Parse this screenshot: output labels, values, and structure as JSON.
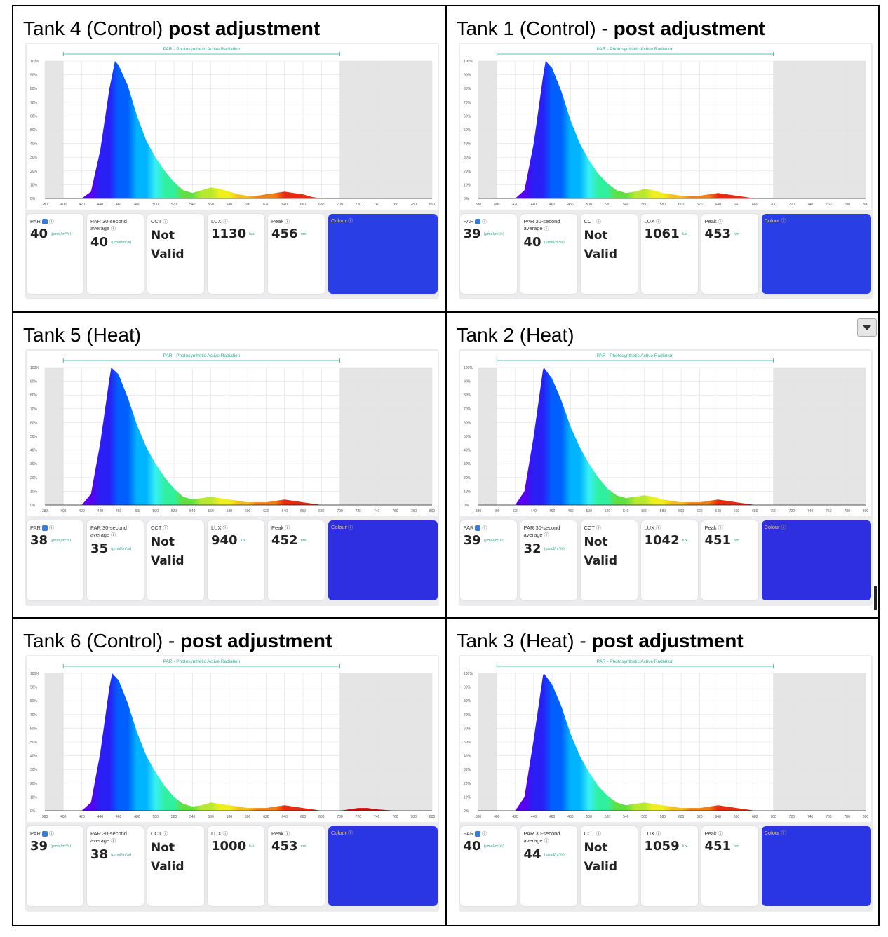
{
  "panels": [
    {
      "title_main": "Tank 4 (Control) ",
      "title_bold": "post adjustment",
      "readings": {
        "par": "40",
        "par_avg": "40",
        "cct_line1": "Not",
        "cct_line2": "Valid",
        "lux": "1130",
        "peak": "456"
      },
      "colour": "#2a3ee6"
    },
    {
      "title_main": "Tank 1 (Control) - ",
      "title_bold": "post adjustment",
      "readings": {
        "par": "39",
        "par_avg": "40",
        "cct_line1": "Not",
        "cct_line2": "Valid",
        "lux": "1061",
        "peak": "453"
      },
      "colour": "#2a3ee6"
    },
    {
      "title_main": "Tank 5 (Heat)",
      "title_bold": "",
      "readings": {
        "par": "38",
        "par_avg": "35",
        "cct_line1": "Not",
        "cct_line2": "Valid",
        "lux": "940",
        "peak": "452"
      },
      "colour": "#2e2fe0"
    },
    {
      "title_main": "Tank 2 (Heat)",
      "title_bold": "",
      "readings": {
        "par": "39",
        "par_avg": "32",
        "cct_line1": "Not",
        "cct_line2": "Valid",
        "lux": "1042",
        "peak": "451"
      },
      "colour": "#2e2fe0"
    },
    {
      "title_main": "Tank 6 (Control) - ",
      "title_bold": "post adjustment",
      "readings": {
        "par": "39",
        "par_avg": "38",
        "cct_line1": "Not",
        "cct_line2": "Valid",
        "lux": "1000",
        "peak": "453"
      },
      "colour": "#2a35e4"
    },
    {
      "title_main": "Tank 3 (Heat) - ",
      "title_bold": "post adjustment",
      "readings": {
        "par": "40",
        "par_avg": "44",
        "cct_line1": "Not",
        "cct_line2": "Valid",
        "lux": "1059",
        "peak": "451"
      },
      "colour": "#2a35e4"
    }
  ],
  "labels": {
    "par": "PAR",
    "par_avg": "PAR 30-second average",
    "cct": "CCT",
    "lux": "LUX",
    "peak": "Peak",
    "colour": "Colour",
    "par_unit": "(µmol/m²/s)",
    "lux_unit": "lux",
    "peak_unit": "nm"
  },
  "chart_data": [
    {
      "type": "area",
      "title": "PAR - Photosynthetic Active Radiation",
      "x": [
        380,
        420,
        430,
        440,
        450,
        456,
        460,
        470,
        480,
        490,
        500,
        510,
        520,
        530,
        540,
        550,
        560,
        570,
        580,
        590,
        600,
        610,
        620,
        630,
        640,
        650,
        660,
        670,
        680,
        690,
        700,
        720,
        740,
        760,
        780,
        800
      ],
      "y": [
        0,
        0,
        5,
        35,
        80,
        100,
        97,
        82,
        60,
        42,
        30,
        20,
        12,
        6,
        4,
        6,
        8,
        7,
        5,
        3,
        2,
        2,
        3,
        4,
        5,
        4,
        3,
        1,
        0,
        0,
        0,
        0,
        0,
        0,
        0,
        0
      ],
      "xlim": [
        380,
        800
      ],
      "ylim": [
        0,
        100
      ],
      "par_range": [
        400,
        700
      ],
      "xticks": [
        "380",
        "400",
        "420",
        "440",
        "460",
        "480",
        "500",
        "520",
        "540",
        "560",
        "580",
        "600",
        "620",
        "640",
        "660",
        "680",
        "700",
        "720",
        "740",
        "760",
        "780",
        "800"
      ],
      "yticks": [
        "0%",
        "10%",
        "20%",
        "30%",
        "40%",
        "50%",
        "60%",
        "70%",
        "80%",
        "90%",
        "100%"
      ]
    },
    {
      "type": "area",
      "title": "PAR - Photosynthetic Active Radiation",
      "x": [
        380,
        420,
        430,
        440,
        450,
        453,
        460,
        470,
        480,
        490,
        500,
        510,
        520,
        530,
        540,
        550,
        560,
        570,
        580,
        590,
        600,
        610,
        620,
        630,
        640,
        650,
        660,
        670,
        680,
        690,
        700,
        720,
        740,
        760,
        780,
        800
      ],
      "y": [
        0,
        0,
        6,
        40,
        88,
        100,
        95,
        78,
        57,
        40,
        28,
        18,
        11,
        6,
        4,
        5,
        7,
        6,
        4,
        3,
        2,
        2,
        2,
        3,
        4,
        3,
        2,
        1,
        0,
        0,
        0,
        0,
        0,
        0,
        0,
        0
      ],
      "xlim": [
        380,
        800
      ],
      "ylim": [
        0,
        100
      ],
      "par_range": [
        400,
        700
      ],
      "xticks": [
        "380",
        "400",
        "420",
        "440",
        "460",
        "480",
        "500",
        "520",
        "540",
        "560",
        "580",
        "600",
        "620",
        "640",
        "660",
        "680",
        "700",
        "720",
        "740",
        "760",
        "780",
        "800"
      ],
      "yticks": [
        "0%",
        "10%",
        "20%",
        "30%",
        "40%",
        "50%",
        "60%",
        "70%",
        "80%",
        "90%",
        "100%"
      ]
    },
    {
      "type": "area",
      "title": "PAR - Photosynthetic Active Radiation",
      "x": [
        380,
        420,
        430,
        440,
        450,
        452,
        460,
        470,
        480,
        490,
        500,
        510,
        520,
        530,
        540,
        550,
        560,
        570,
        580,
        590,
        600,
        610,
        620,
        630,
        640,
        650,
        660,
        670,
        680,
        690,
        700,
        720,
        740,
        760,
        780,
        800
      ],
      "y": [
        0,
        0,
        8,
        45,
        92,
        100,
        95,
        78,
        58,
        42,
        30,
        20,
        12,
        6,
        4,
        5,
        6,
        5,
        4,
        3,
        2,
        2,
        2,
        3,
        4,
        3,
        2,
        1,
        0,
        0,
        0,
        0,
        0,
        0,
        0,
        0
      ],
      "xlim": [
        380,
        800
      ],
      "ylim": [
        0,
        100
      ],
      "par_range": [
        400,
        700
      ],
      "xticks": [
        "380",
        "400",
        "420",
        "440",
        "460",
        "480",
        "500",
        "520",
        "540",
        "560",
        "580",
        "600",
        "620",
        "640",
        "660",
        "680",
        "700",
        "720",
        "740",
        "760",
        "780",
        "800"
      ],
      "yticks": [
        "0%",
        "10%",
        "20%",
        "30%",
        "40%",
        "50%",
        "60%",
        "70%",
        "80%",
        "90%",
        "100%"
      ]
    },
    {
      "type": "area",
      "title": "PAR - Photosynthetic Active Radiation",
      "x": [
        380,
        420,
        430,
        440,
        450,
        451,
        460,
        470,
        480,
        490,
        500,
        510,
        520,
        530,
        540,
        550,
        560,
        570,
        580,
        590,
        600,
        610,
        620,
        630,
        640,
        650,
        660,
        670,
        680,
        690,
        700,
        720,
        740,
        760,
        780,
        800
      ],
      "y": [
        0,
        0,
        10,
        50,
        98,
        100,
        92,
        76,
        57,
        42,
        30,
        20,
        12,
        7,
        5,
        6,
        7,
        6,
        4,
        3,
        2,
        2,
        2,
        3,
        4,
        3,
        2,
        1,
        0,
        0,
        0,
        0,
        0,
        0,
        0,
        0
      ],
      "xlim": [
        380,
        800
      ],
      "ylim": [
        0,
        100
      ],
      "par_range": [
        400,
        700
      ],
      "xticks": [
        "380",
        "400",
        "420",
        "440",
        "460",
        "480",
        "500",
        "520",
        "540",
        "560",
        "580",
        "600",
        "620",
        "640",
        "660",
        "680",
        "700",
        "720",
        "740",
        "760",
        "780",
        "800"
      ],
      "yticks": [
        "0%",
        "10%",
        "20%",
        "30%",
        "40%",
        "50%",
        "60%",
        "70%",
        "80%",
        "90%",
        "100%"
      ]
    },
    {
      "type": "area",
      "title": "PAR - Photosynthetic Active Radiation",
      "x": [
        380,
        420,
        430,
        440,
        450,
        453,
        460,
        470,
        480,
        490,
        500,
        510,
        520,
        530,
        540,
        550,
        560,
        570,
        580,
        590,
        600,
        610,
        620,
        630,
        640,
        650,
        660,
        670,
        680,
        690,
        700,
        710,
        720,
        730,
        740,
        760,
        780,
        800
      ],
      "y": [
        0,
        0,
        6,
        42,
        90,
        100,
        95,
        78,
        57,
        40,
        28,
        18,
        10,
        5,
        3,
        4,
        6,
        5,
        4,
        3,
        2,
        2,
        2,
        3,
        4,
        3,
        2,
        1,
        0,
        0,
        0,
        1,
        2,
        2,
        1,
        0,
        0,
        0
      ],
      "xlim": [
        380,
        800
      ],
      "ylim": [
        0,
        100
      ],
      "par_range": [
        400,
        700
      ],
      "xticks": [
        "380",
        "400",
        "420",
        "440",
        "460",
        "480",
        "500",
        "520",
        "540",
        "560",
        "580",
        "600",
        "620",
        "640",
        "660",
        "680",
        "700",
        "720",
        "740",
        "760",
        "780",
        "800"
      ],
      "yticks": [
        "0%",
        "10%",
        "20%",
        "30%",
        "40%",
        "50%",
        "60%",
        "70%",
        "80%",
        "90%",
        "100%"
      ]
    },
    {
      "type": "area",
      "title": "PAR - Photosynthetic Active Radiation",
      "x": [
        380,
        420,
        430,
        440,
        450,
        451,
        460,
        470,
        480,
        490,
        500,
        510,
        520,
        530,
        540,
        550,
        560,
        570,
        580,
        590,
        600,
        610,
        620,
        630,
        640,
        650,
        660,
        670,
        680,
        690,
        700,
        720,
        740,
        760,
        780,
        800
      ],
      "y": [
        0,
        0,
        10,
        52,
        98,
        100,
        92,
        76,
        56,
        40,
        28,
        18,
        11,
        6,
        4,
        5,
        6,
        5,
        4,
        3,
        2,
        2,
        2,
        3,
        4,
        3,
        2,
        1,
        0,
        0,
        0,
        0,
        0,
        0,
        0,
        0
      ],
      "xlim": [
        380,
        800
      ],
      "ylim": [
        0,
        100
      ],
      "par_range": [
        400,
        700
      ],
      "xticks": [
        "380",
        "400",
        "420",
        "440",
        "460",
        "480",
        "500",
        "520",
        "540",
        "560",
        "580",
        "600",
        "620",
        "640",
        "660",
        "680",
        "700",
        "720",
        "740",
        "760",
        "780",
        "800"
      ],
      "yticks": [
        "0%",
        "10%",
        "20%",
        "30%",
        "40%",
        "50%",
        "60%",
        "70%",
        "80%",
        "90%",
        "100%"
      ]
    }
  ]
}
